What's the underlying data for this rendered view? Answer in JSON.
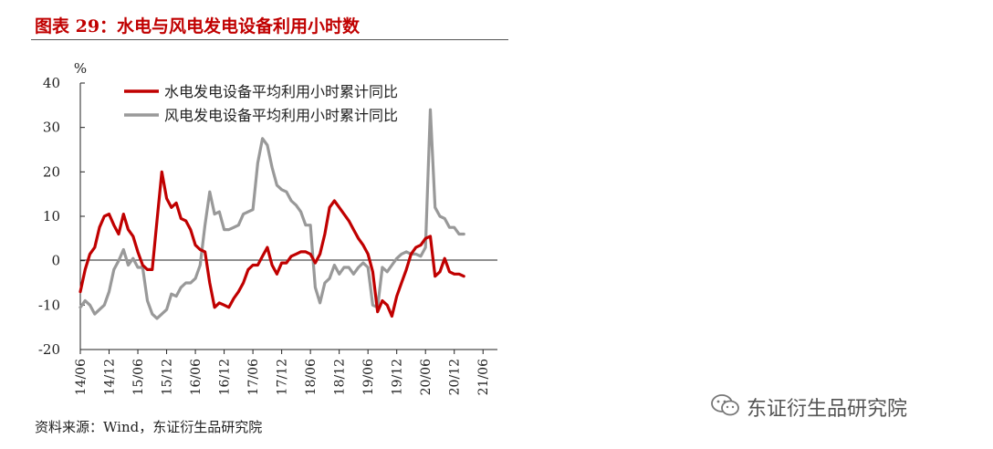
{
  "header": {
    "title": "图表 29：水电与风电发电设备利用小时数"
  },
  "footer": {
    "source": "资料来源：Wind，东证衍生品研究院"
  },
  "watermark": {
    "text": "东证衍生品研究院",
    "icon": "wechat-icon"
  },
  "colors": {
    "hydro": "#c00000",
    "wind": "#999999",
    "title": "#c00000"
  },
  "chart_data": {
    "type": "line",
    "title": "",
    "ylabel": "%",
    "xlabel": "",
    "ylim": [
      -20,
      40
    ],
    "yticks": [
      40,
      30,
      20,
      10,
      0,
      -10,
      -20
    ],
    "xticks": [
      "14/06",
      "14/12",
      "15/06",
      "15/12",
      "16/06",
      "16/12",
      "17/06",
      "17/12",
      "18/06",
      "18/12",
      "19/06",
      "19/12",
      "20/06",
      "20/12",
      "21/06"
    ],
    "xrange": [
      0,
      87
    ],
    "legend_position": "top",
    "grid": false,
    "series": [
      {
        "name": "水电发电设备平均利用小时累计同比",
        "color": "#c00000",
        "points": [
          [
            0,
            -7
          ],
          [
            1,
            -2
          ],
          [
            2,
            1.5
          ],
          [
            3,
            3
          ],
          [
            4,
            7.5
          ],
          [
            5,
            10
          ],
          [
            6,
            10.5
          ],
          [
            7,
            8
          ],
          [
            8,
            6
          ],
          [
            9,
            10.5
          ],
          [
            10,
            7
          ],
          [
            11,
            5.5
          ],
          [
            12,
            2
          ],
          [
            13,
            -1
          ],
          [
            14,
            -2
          ],
          [
            15,
            -2
          ],
          [
            16,
            9
          ],
          [
            17,
            20
          ],
          [
            18,
            14
          ],
          [
            19,
            12
          ],
          [
            20,
            13
          ],
          [
            21,
            9.5
          ],
          [
            22,
            9
          ],
          [
            23,
            7
          ],
          [
            24,
            3.5
          ],
          [
            25,
            2.5
          ],
          [
            26,
            2
          ],
          [
            27,
            -5
          ],
          [
            28,
            -10.5
          ],
          [
            29,
            -9.5
          ],
          [
            30,
            -10
          ],
          [
            31,
            -10.5
          ],
          [
            32,
            -8.5
          ],
          [
            33,
            -7
          ],
          [
            34,
            -5
          ],
          [
            35,
            -2
          ],
          [
            36,
            -1
          ],
          [
            37,
            -1
          ],
          [
            38,
            1
          ],
          [
            39,
            3
          ],
          [
            40,
            -1
          ],
          [
            41,
            -3
          ],
          [
            42,
            -0.5
          ],
          [
            43,
            -0.5
          ],
          [
            44,
            1
          ],
          [
            45,
            1.5
          ],
          [
            46,
            2
          ],
          [
            47,
            2
          ],
          [
            48,
            1.5
          ],
          [
            49,
            -0.5
          ],
          [
            50,
            1.5
          ],
          [
            51,
            6
          ],
          [
            52,
            12
          ],
          [
            53,
            13.5
          ],
          [
            54,
            12
          ],
          [
            55,
            10.5
          ],
          [
            56,
            9
          ],
          [
            57,
            7
          ],
          [
            58,
            5
          ],
          [
            59,
            3.5
          ],
          [
            60,
            1.5
          ],
          [
            61,
            -2.5
          ],
          [
            62,
            -11.5
          ],
          [
            63,
            -9
          ],
          [
            64,
            -10
          ],
          [
            65,
            -12.5
          ],
          [
            66,
            -8
          ],
          [
            67,
            -5
          ],
          [
            68,
            -2
          ],
          [
            69,
            1.5
          ],
          [
            70,
            3
          ],
          [
            71,
            3.5
          ],
          [
            72,
            5
          ],
          [
            73,
            5.5
          ],
          [
            74,
            -3.5
          ],
          [
            75,
            -2.5
          ],
          [
            76,
            0.5
          ],
          [
            77,
            -2.5
          ],
          [
            78,
            -3
          ],
          [
            79,
            -3
          ],
          [
            80,
            -3.5
          ]
        ]
      },
      {
        "name": "风电发电设备平均利用小时累计同比",
        "color": "#999999",
        "points": [
          [
            0,
            -10.5
          ],
          [
            1,
            -9
          ],
          [
            2,
            -10
          ],
          [
            3,
            -12
          ],
          [
            4,
            -11
          ],
          [
            5,
            -10
          ],
          [
            6,
            -7
          ],
          [
            7,
            -2
          ],
          [
            8,
            0
          ],
          [
            9,
            2.5
          ],
          [
            10,
            -1
          ],
          [
            11,
            0.5
          ],
          [
            12,
            -1.5
          ],
          [
            13,
            -1.5
          ],
          [
            14,
            -9
          ],
          [
            15,
            -12
          ],
          [
            16,
            -13
          ],
          [
            17,
            -12
          ],
          [
            18,
            -11
          ],
          [
            19,
            -7.5
          ],
          [
            20,
            -8
          ],
          [
            21,
            -6
          ],
          [
            22,
            -5
          ],
          [
            23,
            -5
          ],
          [
            24,
            -4
          ],
          [
            25,
            -1
          ],
          [
            26,
            8
          ],
          [
            27,
            15.5
          ],
          [
            28,
            10.5
          ],
          [
            29,
            11
          ],
          [
            30,
            7
          ],
          [
            31,
            7
          ],
          [
            32,
            7.5
          ],
          [
            33,
            8
          ],
          [
            34,
            10.5
          ],
          [
            35,
            11
          ],
          [
            36,
            11.5
          ],
          [
            37,
            22
          ],
          [
            38,
            27.5
          ],
          [
            39,
            26
          ],
          [
            40,
            21
          ],
          [
            41,
            17
          ],
          [
            42,
            16
          ],
          [
            43,
            15.5
          ],
          [
            44,
            13.5
          ],
          [
            45,
            12.5
          ],
          [
            46,
            11
          ],
          [
            47,
            8
          ],
          [
            48,
            8
          ],
          [
            49,
            -6
          ],
          [
            50,
            -9.5
          ],
          [
            51,
            -5
          ],
          [
            52,
            -4
          ],
          [
            53,
            -1
          ],
          [
            54,
            -3
          ],
          [
            55,
            -1.5
          ],
          [
            56,
            -1.5
          ],
          [
            57,
            -3
          ],
          [
            58,
            -1.5
          ],
          [
            59,
            -0.5
          ],
          [
            60,
            -1.5
          ],
          [
            61,
            -10
          ],
          [
            62,
            -10.5
          ],
          [
            63,
            -1.5
          ],
          [
            64,
            -2.5
          ],
          [
            65,
            -1
          ],
          [
            66,
            0.5
          ],
          [
            67,
            1.5
          ],
          [
            68,
            2
          ],
          [
            69,
            1.5
          ],
          [
            70,
            1.5
          ],
          [
            71,
            1
          ],
          [
            72,
            3
          ],
          [
            73,
            34
          ],
          [
            74,
            12
          ],
          [
            75,
            10
          ],
          [
            76,
            9.5
          ],
          [
            77,
            7.5
          ],
          [
            78,
            7.5
          ],
          [
            79,
            6
          ],
          [
            80,
            6
          ]
        ]
      }
    ]
  }
}
